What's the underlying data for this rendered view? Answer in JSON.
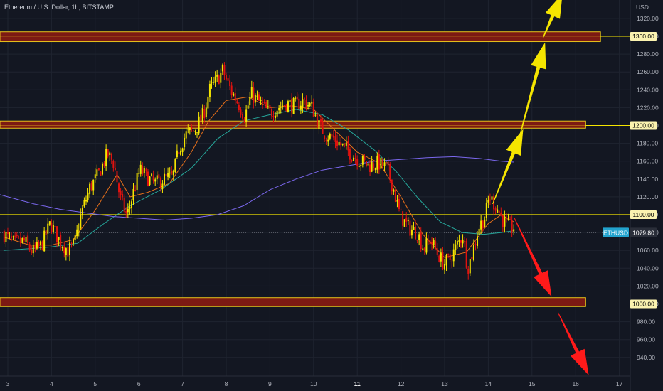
{
  "header": {
    "title": "Ethereum / U.S. Dollar, 1h, BITSTAMP",
    "currency": "USD"
  },
  "chart_data": {
    "type": "candlestick",
    "symbol": "ETHUSD",
    "last_price": "1079.80",
    "x_ticks": [
      {
        "label": "3",
        "day": 3,
        "bold": false
      },
      {
        "label": "4",
        "day": 4,
        "bold": false
      },
      {
        "label": "5",
        "day": 5,
        "bold": false
      },
      {
        "label": "6",
        "day": 6,
        "bold": false
      },
      {
        "label": "7",
        "day": 7,
        "bold": false
      },
      {
        "label": "8",
        "day": 8,
        "bold": false
      },
      {
        "label": "9",
        "day": 9,
        "bold": false
      },
      {
        "label": "10",
        "day": 10,
        "bold": false
      },
      {
        "label": "11",
        "day": 11,
        "bold": true
      },
      {
        "label": "12",
        "day": 12,
        "bold": false
      },
      {
        "label": "13",
        "day": 13,
        "bold": false
      },
      {
        "label": "14",
        "day": 14,
        "bold": false
      },
      {
        "label": "15",
        "day": 15,
        "bold": false
      },
      {
        "label": "16",
        "day": 16,
        "bold": false
      },
      {
        "label": "17",
        "day": 17,
        "bold": false
      }
    ],
    "y_ticks": [
      "1320.00",
      "1300.00",
      "1280.00",
      "1260.00",
      "1240.00",
      "1220.00",
      "1200.00",
      "1180.00",
      "1160.00",
      "1140.00",
      "1120.00",
      "1100.00",
      "1080.00",
      "1060.00",
      "1040.00",
      "1020.00",
      "1000.00",
      "980.00",
      "960.00",
      "940.00"
    ],
    "ylim": [
      925,
      1335
    ],
    "levels": [
      {
        "label": "1300.00",
        "value": 1300,
        "zone": true,
        "zone_low": 1294,
        "zone_high": 1305,
        "zone_end_day": 16.57
      },
      {
        "label": "1200.00",
        "value": 1200,
        "zone": true,
        "zone_low": 1197,
        "zone_high": 1205,
        "zone_end_day": 16.23
      },
      {
        "label": "1100.00",
        "value": 1100,
        "zone": false
      },
      {
        "label": "1000.00",
        "value": 1000,
        "zone": true,
        "zone_low": 997,
        "zone_high": 1007,
        "zone_end_day": 16.23
      }
    ],
    "price_path": [
      [
        2.9,
        1080
      ],
      [
        3.15,
        1068
      ],
      [
        3.4,
        1070
      ],
      [
        3.6,
        1058
      ],
      [
        3.8,
        1066
      ],
      [
        4.0,
        1090
      ],
      [
        4.2,
        1072
      ],
      [
        4.4,
        1060
      ],
      [
        4.55,
        1066
      ],
      [
        4.7,
        1100
      ],
      [
        4.9,
        1130
      ],
      [
        5.1,
        1145
      ],
      [
        5.3,
        1168
      ],
      [
        5.45,
        1158
      ],
      [
        5.6,
        1118
      ],
      [
        5.75,
        1098
      ],
      [
        5.9,
        1125
      ],
      [
        6.05,
        1150
      ],
      [
        6.25,
        1140
      ],
      [
        6.4,
        1135
      ],
      [
        6.6,
        1140
      ],
      [
        6.8,
        1142
      ],
      [
        6.95,
        1175
      ],
      [
        7.1,
        1190
      ],
      [
        7.3,
        1195
      ],
      [
        7.5,
        1212
      ],
      [
        7.65,
        1240
      ],
      [
        7.8,
        1250
      ],
      [
        7.95,
        1262
      ],
      [
        8.05,
        1248
      ],
      [
        8.15,
        1238
      ],
      [
        8.3,
        1225
      ],
      [
        8.45,
        1210
      ],
      [
        8.6,
        1235
      ],
      [
        8.8,
        1225
      ],
      [
        9.0,
        1214
      ],
      [
        9.2,
        1220
      ],
      [
        9.4,
        1225
      ],
      [
        9.6,
        1222
      ],
      [
        9.8,
        1228
      ],
      [
        10.0,
        1220
      ],
      [
        10.15,
        1200
      ],
      [
        10.3,
        1190
      ],
      [
        10.5,
        1185
      ],
      [
        10.7,
        1176
      ],
      [
        10.9,
        1168
      ],
      [
        11.1,
        1160
      ],
      [
        11.3,
        1155
      ],
      [
        11.5,
        1158
      ],
      [
        11.7,
        1152
      ],
      [
        11.85,
        1130
      ],
      [
        12.0,
        1100
      ],
      [
        12.2,
        1085
      ],
      [
        12.4,
        1080
      ],
      [
        12.55,
        1062
      ],
      [
        12.7,
        1072
      ],
      [
        12.85,
        1058
      ],
      [
        13.0,
        1045
      ],
      [
        13.15,
        1050
      ],
      [
        13.3,
        1065
      ],
      [
        13.45,
        1078
      ],
      [
        13.55,
        1040
      ],
      [
        13.65,
        1055
      ],
      [
        13.8,
        1085
      ],
      [
        13.95,
        1098
      ],
      [
        14.05,
        1120
      ],
      [
        14.2,
        1110
      ],
      [
        14.35,
        1095
      ],
      [
        14.5,
        1085
      ],
      [
        14.58,
        1086
      ]
    ],
    "moving_averages": [
      {
        "color": "#e8701a",
        "points": [
          [
            2.9,
            1075
          ],
          [
            3.5,
            1066
          ],
          [
            4.0,
            1066
          ],
          [
            4.5,
            1072
          ],
          [
            5.0,
            1105
          ],
          [
            5.5,
            1145
          ],
          [
            5.8,
            1120
          ],
          [
            6.2,
            1125
          ],
          [
            6.7,
            1135
          ],
          [
            7.2,
            1170
          ],
          [
            7.6,
            1205
          ],
          [
            8.0,
            1228
          ],
          [
            8.5,
            1232
          ],
          [
            9.0,
            1220
          ],
          [
            9.5,
            1222
          ],
          [
            10.0,
            1218
          ],
          [
            10.5,
            1194
          ],
          [
            11.0,
            1170
          ],
          [
            11.5,
            1158
          ],
          [
            12.0,
            1120
          ],
          [
            12.5,
            1078
          ],
          [
            13.0,
            1052
          ],
          [
            13.5,
            1058
          ],
          [
            14.0,
            1090
          ],
          [
            14.3,
            1100
          ],
          [
            14.58,
            1092
          ]
        ]
      },
      {
        "color": "#26a69a",
        "points": [
          [
            2.9,
            1060
          ],
          [
            3.5,
            1062
          ],
          [
            4.0,
            1064
          ],
          [
            4.6,
            1068
          ],
          [
            5.2,
            1090
          ],
          [
            5.8,
            1110
          ],
          [
            6.5,
            1128
          ],
          [
            7.2,
            1152
          ],
          [
            7.8,
            1185
          ],
          [
            8.4,
            1205
          ],
          [
            9.0,
            1212
          ],
          [
            9.6,
            1218
          ],
          [
            10.2,
            1212
          ],
          [
            10.8,
            1195
          ],
          [
            11.4,
            1172
          ],
          [
            11.9,
            1148
          ],
          [
            12.4,
            1118
          ],
          [
            12.9,
            1092
          ],
          [
            13.4,
            1080
          ],
          [
            13.9,
            1078
          ],
          [
            14.3,
            1080
          ],
          [
            14.58,
            1082
          ]
        ]
      },
      {
        "color": "#7b68ee",
        "points": [
          [
            0.0,
            1158
          ],
          [
            0.8,
            1150
          ],
          [
            1.6,
            1140
          ],
          [
            2.4,
            1128
          ],
          [
            3.0,
            1120
          ],
          [
            3.6,
            1112
          ],
          [
            4.2,
            1106
          ],
          [
            4.8,
            1102
          ],
          [
            5.4,
            1098
          ],
          [
            6.0,
            1096
          ],
          [
            6.6,
            1094
          ],
          [
            7.2,
            1096
          ],
          [
            7.8,
            1100
          ],
          [
            8.4,
            1110
          ],
          [
            9.0,
            1128
          ],
          [
            9.6,
            1140
          ],
          [
            10.2,
            1150
          ],
          [
            10.8,
            1155
          ],
          [
            11.4,
            1160
          ],
          [
            12.0,
            1162
          ],
          [
            12.6,
            1164
          ],
          [
            13.2,
            1165
          ],
          [
            13.8,
            1163
          ],
          [
            14.3,
            1160
          ],
          [
            14.58,
            1159
          ]
        ]
      }
    ],
    "arrows": [
      {
        "color": "#f5e500",
        "from": [
          14.1,
          1112
        ],
        "to": [
          14.8,
          1196
        ]
      },
      {
        "color": "#f5e500",
        "from": [
          14.7,
          1185
        ],
        "to": [
          15.3,
          1293
        ]
      },
      {
        "color": "#f5e500",
        "from": [
          15.25,
          1298
        ],
        "to": [
          15.7,
          1348
        ]
      },
      {
        "color": "#ff1a1a",
        "from": [
          14.6,
          1096
        ],
        "to": [
          15.45,
          1008
        ]
      },
      {
        "color": "#ff1a1a",
        "from": [
          15.6,
          990
        ],
        "to": [
          16.3,
          920
        ]
      }
    ],
    "colors": {
      "background": "#131722",
      "up": "#f5e500",
      "down": "#e0120f",
      "zone_fill": "#7c1a13",
      "zone_border": "#e8c21a",
      "level_line": "#f5e500",
      "label_bg": "#fbf3b0",
      "ticker_bg": "#22a3ce",
      "grid": "#1f2430"
    }
  }
}
